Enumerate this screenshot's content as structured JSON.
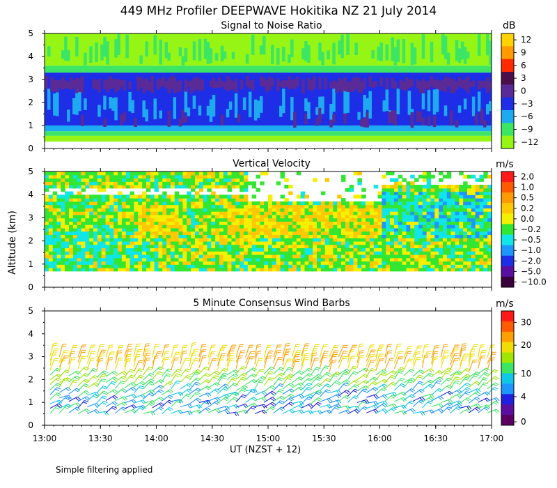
{
  "title": "449 MHz Profiler DEEPWAVE Hokitika NZ 21 July 2014",
  "ylabel": "Altitude (km)",
  "xaxis_title": "UT  (NZST + 12)",
  "footnote": "Simple filtering applied",
  "chart_data": [
    {
      "type": "heatmap",
      "title": "Signal to Noise Ratio",
      "unit": "dB",
      "x": [
        "13:00",
        "13:30",
        "14:00",
        "14:30",
        "15:00",
        "15:30",
        "16:00",
        "16:30",
        "17:00"
      ],
      "ylim": [
        0,
        5
      ],
      "yticks": [
        0,
        1,
        2,
        3,
        4,
        5
      ],
      "colorbar": {
        "labels": [
          "12",
          "9",
          "6",
          "3",
          "0",
          "−3",
          "−6",
          "−9",
          "−12"
        ],
        "colors": [
          "#ffd200",
          "#ff9a00",
          "#ff2a00",
          "#4a0f4a",
          "#5a2a96",
          "#1e2ee6",
          "#1eaaf0",
          "#3ce664",
          "#96f514"
        ]
      },
      "layers": [
        {
          "range": [
            0.3,
            0.55
          ],
          "level": "-12"
        },
        {
          "range": [
            0.55,
            0.75
          ],
          "level": "-9"
        },
        {
          "range": [
            0.75,
            1.0
          ],
          "level": "-6"
        },
        {
          "range": [
            1.0,
            3.3
          ],
          "level": "-3"
        },
        {
          "range": [
            3.3,
            3.6
          ],
          "level": "-9"
        },
        {
          "range": [
            3.6,
            5.0
          ],
          "level": "-12"
        }
      ]
    },
    {
      "type": "heatmap",
      "title": "Vertical Velocity",
      "unit": "m/s",
      "x": [
        "13:00",
        "13:30",
        "14:00",
        "14:30",
        "15:00",
        "15:30",
        "16:00",
        "16:30",
        "17:00"
      ],
      "ylim": [
        0,
        5
      ],
      "yticks": [
        0,
        1,
        2,
        3,
        4,
        5
      ],
      "colorbar": {
        "labels": [
          "2.0",
          "1.0",
          "0.5",
          "0.2",
          "0.0",
          "−0.2",
          "−0.5",
          "−1.0",
          "−2.0",
          "−5.0",
          "−10.0"
        ],
        "colors": [
          "#ff1a1a",
          "#ff5a00",
          "#ff9a00",
          "#ffc800",
          "#f5f000",
          "#32e632",
          "#10e6e6",
          "#1e96ff",
          "#1e2ee6",
          "#5a0fa0",
          "#3a003a"
        ]
      },
      "data_range": [
        0.7,
        5.0
      ]
    },
    {
      "type": "scatter",
      "title": "5 Minute Consensus Wind Barbs",
      "unit": "m/s",
      "x": [
        "13:00",
        "13:30",
        "14:00",
        "14:30",
        "15:00",
        "15:30",
        "16:00",
        "16:30",
        "17:00"
      ],
      "ylim": [
        0,
        5
      ],
      "yticks": [
        0,
        1,
        2,
        3,
        4,
        5
      ],
      "colorbar": {
        "labels": [
          "30",
          "20",
          "10",
          "4",
          "0"
        ],
        "colors": [
          "#ff1a1a",
          "#ff5a00",
          "#ffa000",
          "#f0dc00",
          "#a0e600",
          "#3ce664",
          "#10c8e6",
          "#1e96ff",
          "#2020e0",
          "#5a0fa0",
          "#5a0060"
        ]
      },
      "interval_minutes": 5,
      "altitude_range_km": [
        0.5,
        3.2
      ]
    }
  ]
}
